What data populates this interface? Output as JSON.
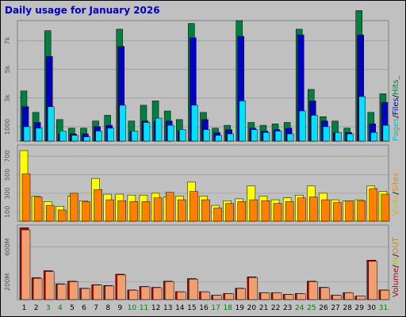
{
  "title": "Daily usage for January 2026",
  "colors": {
    "pages": "#00a0c8",
    "files": "#0000c0",
    "hits": "#008040",
    "visits": "#e0a000",
    "sites": "#ff8000",
    "in": "#e07030",
    "out": "#ff8000",
    "volume": "#c00000",
    "weekend": "#008000",
    "weekday": "#000000"
  },
  "chart_data": {
    "type": "bar",
    "title": "Daily usage for January 2026",
    "categories": [
      "1",
      "2",
      "3",
      "4",
      "5",
      "6",
      "7",
      "8",
      "9",
      "10",
      "11",
      "12",
      "13",
      "14",
      "15",
      "16",
      "17",
      "18",
      "19",
      "20",
      "21",
      "22",
      "23",
      "24",
      "25",
      "26",
      "27",
      "28",
      "29",
      "30",
      "31"
    ],
    "weekend_days": [
      3,
      4,
      10,
      11,
      17,
      18,
      24,
      25,
      31
    ],
    "panels": [
      {
        "name": "hits-files-pages",
        "y_ticks": [
          1000,
          3000,
          5000,
          7000
        ],
        "y_tick_labels": [
          "1000",
          "3k",
          "5k",
          "7k"
        ],
        "ylim": [
          0,
          8400
        ],
        "legend": [
          "Pages",
          "/",
          "Files",
          "/",
          "Hits_"
        ],
        "legend_keys": [
          "pages",
          "sep",
          "files",
          "sep",
          "hits"
        ],
        "series": [
          {
            "name": "Hits",
            "values": [
              3500,
              2000,
              7700,
              1500,
              900,
              900,
              1400,
              1800,
              7800,
              1400,
              2500,
              2800,
              2100,
              1500,
              8200,
              2000,
              900,
              1100,
              8400,
              1300,
              1100,
              1200,
              1300,
              7800,
              3600,
              1700,
              1400,
              900,
              9100,
              2000,
              3300
            ]
          },
          {
            "name": "Files",
            "values": [
              2400,
              1300,
              5900,
              500,
              500,
              500,
              1000,
              1100,
              6600,
              700,
              1400,
              1400,
              1400,
              700,
              7200,
              1500,
              600,
              800,
              7300,
              900,
              700,
              800,
              900,
              7400,
              2800,
              1400,
              600,
              600,
              7400,
              1200,
              2700
            ]
          },
          {
            "name": "Pages",
            "values": [
              1000,
              900,
              2400,
              700,
              400,
              300,
              700,
              900,
              2500,
              700,
              1300,
              1600,
              1100,
              800,
              2500,
              800,
              400,
              500,
              2800,
              800,
              600,
              700,
              500,
              2100,
              1800,
              1000,
              600,
              500,
              3100,
              600,
              1100
            ]
          }
        ]
      },
      {
        "name": "visits-sites",
        "y_ticks": [
          100,
          300,
          500,
          700
        ],
        "y_tick_labels": [
          "100",
          "300",
          "500",
          "700"
        ],
        "ylim": [
          0,
          820
        ],
        "legend": [
          "Visits",
          "/",
          "Sites"
        ],
        "legend_keys": [
          "visits",
          "sep",
          "sites"
        ],
        "series": [
          {
            "name": "Visits",
            "values": [
              760,
              270,
              210,
              160,
              270,
              220,
              460,
              290,
              290,
              280,
              280,
              300,
              260,
              270,
              420,
              270,
              170,
              220,
              240,
              380,
              270,
              230,
              250,
              280,
              380,
              300,
              230,
              220,
              230,
              380,
              320
            ]
          },
          {
            "name": "Sites",
            "values": [
              510,
              260,
              170,
              120,
              300,
              210,
              340,
              230,
              220,
              210,
              210,
              250,
              310,
              230,
              320,
              230,
              140,
              190,
              210,
              230,
              220,
              190,
              210,
              250,
              260,
              230,
              200,
              220,
              220,
              350,
              290
            ]
          }
        ]
      },
      {
        "name": "volume",
        "y_ticks": [
          200,
          600
        ],
        "y_tick_labels": [
          "200M",
          "600M"
        ],
        "ylim": [
          0,
          850
        ],
        "legend": [
          "Volume",
          "/",
          "IN",
          "/",
          "OUT"
        ],
        "legend_keys": [
          "volume",
          "sep",
          "in",
          "sep",
          "out"
        ],
        "series": [
          {
            "name": "Volume",
            "values": [
              820,
              250,
              330,
              180,
              210,
              130,
              170,
              160,
              290,
              110,
              150,
              140,
              210,
              90,
              240,
              90,
              50,
              70,
              130,
              260,
              80,
              80,
              60,
              70,
              210,
              140,
              50,
              80,
              40,
              450,
              110
            ]
          }
        ]
      }
    ]
  }
}
